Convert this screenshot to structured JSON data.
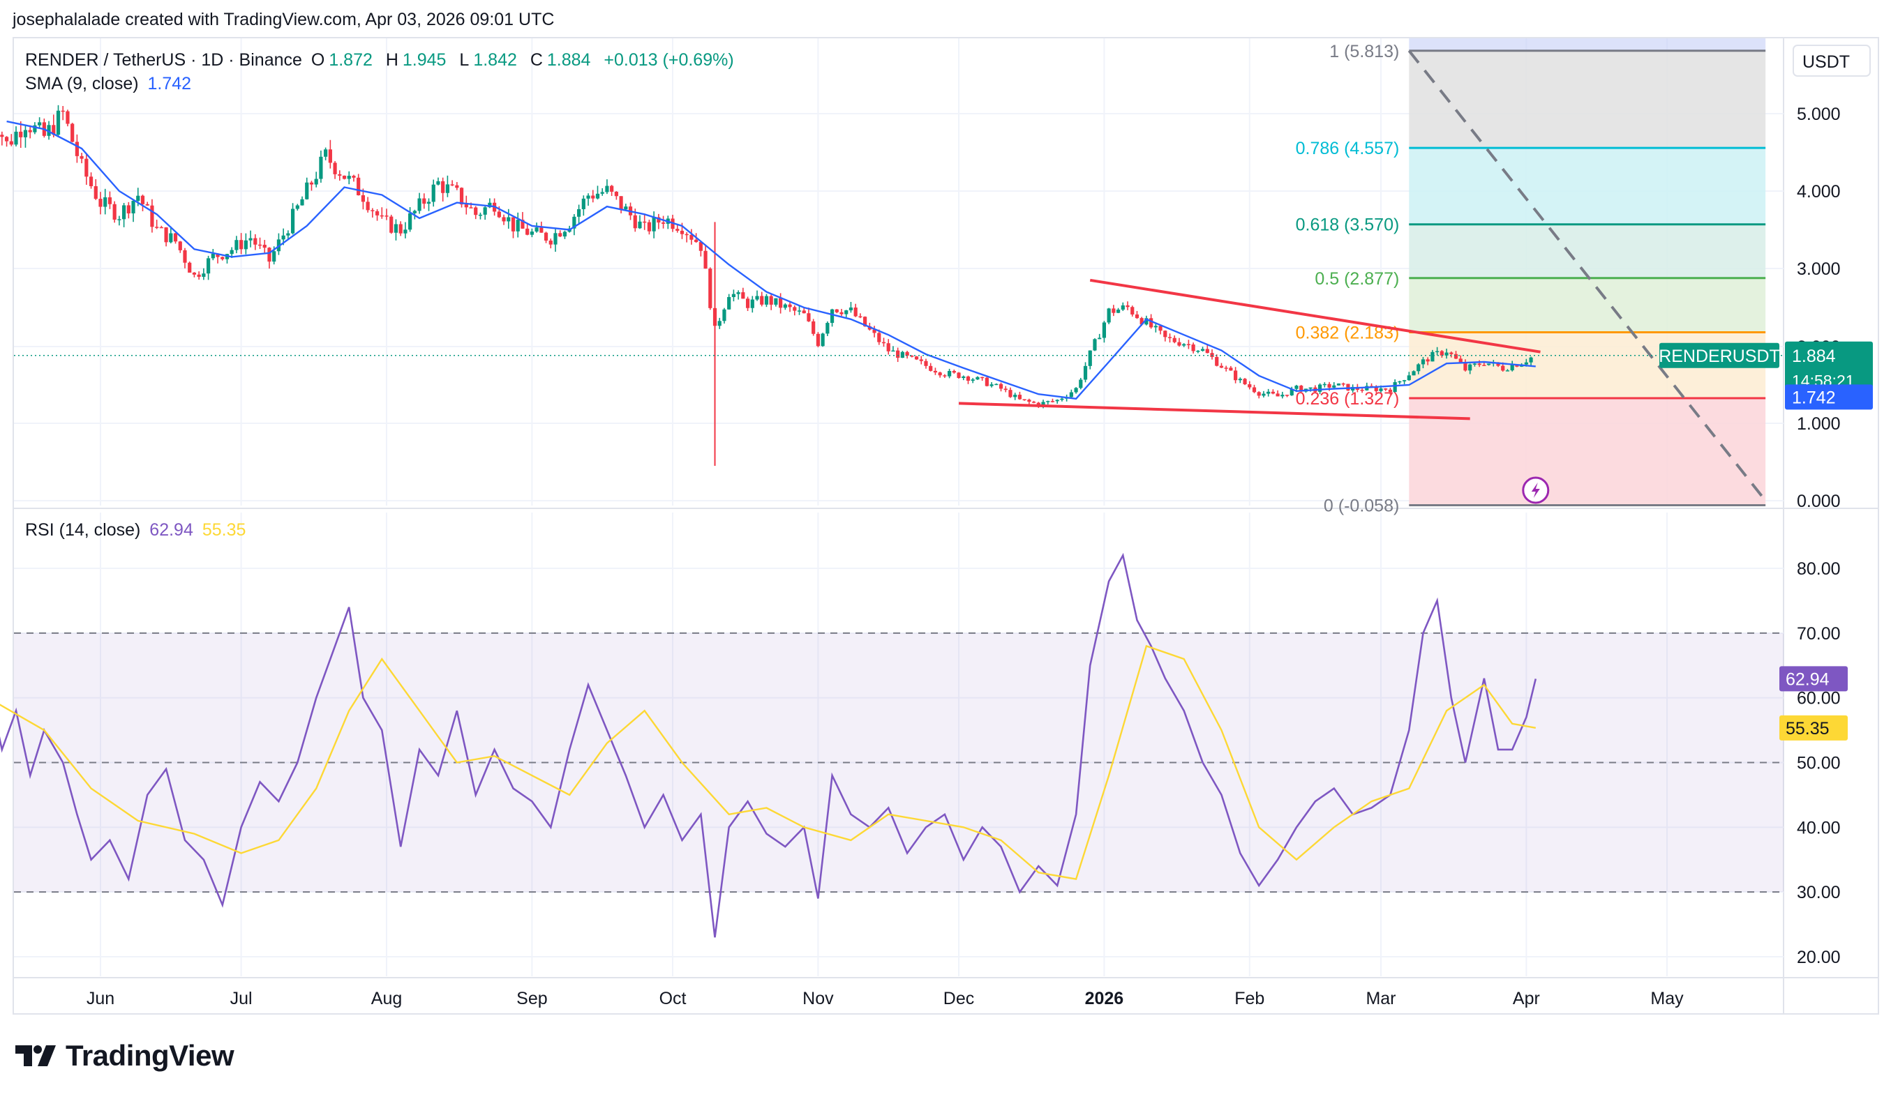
{
  "header": {
    "attribution": "josephalalade created with TradingView.com, Apr 03, 2026 09:01 UTC"
  },
  "legend": {
    "symbol": "RENDER / TetherUS · 1D · Binance",
    "o_key": "O",
    "o_val": "1.872",
    "h_key": "H",
    "h_val": "1.945",
    "l_key": "L",
    "l_val": "1.842",
    "c_key": "C",
    "c_val": "1.884",
    "change": "+0.013 (+0.69%)",
    "sma_label": "SMA (9, close)",
    "sma_val": "1.742",
    "rsi_label": "RSI (14, close)",
    "rsi_val": "62.94",
    "rsi_ma_val": "55.35"
  },
  "price_axis": {
    "currency": "USDT",
    "ticks": [
      "5.000",
      "4.000",
      "3.000",
      "2.000",
      "1.000",
      "0.000"
    ],
    "last_price": "1.884",
    "countdown": "14:58:21",
    "sma_price": "1.742",
    "symbol_tag": "RENDERUSDT"
  },
  "rsi_axis": {
    "ticks": [
      "80.00",
      "70.00",
      "60.00",
      "50.00",
      "40.00",
      "30.00",
      "20.00"
    ],
    "rsi_badge": "62.94",
    "ma_badge": "55.35"
  },
  "time_axis": [
    "Jun",
    "Jul",
    "Aug",
    "Sep",
    "Oct",
    "Nov",
    "Dec",
    "2026",
    "Feb",
    "Mar",
    "Apr",
    "May"
  ],
  "fib_levels": [
    {
      "label": "1 (5.813)",
      "level": 1,
      "price": 5.813,
      "color": "#787b86"
    },
    {
      "label": "0.786 (4.557)",
      "level": 0.786,
      "price": 4.557,
      "color": "#00bcd4"
    },
    {
      "label": "0.618 (3.570)",
      "level": 0.618,
      "price": 3.57,
      "color": "#089981"
    },
    {
      "label": "0.5 (2.877)",
      "level": 0.5,
      "price": 2.877,
      "color": "#4caf50"
    },
    {
      "label": "0.382 (2.183)",
      "level": 0.382,
      "price": 2.183,
      "color": "#ff9800"
    },
    {
      "label": "0.236 (1.327)",
      "level": 0.236,
      "price": 1.327,
      "color": "#f23645"
    },
    {
      "label": "0 (-0.058)",
      "level": 0,
      "price": -0.058,
      "color": "#787b86"
    }
  ],
  "colors": {
    "up": "#089981",
    "down": "#f23645",
    "sma": "#2962ff",
    "rsi": "#7e57c2",
    "rsi_ma": "#fdd835",
    "trendline": "#f23645",
    "grid": "#f0f3fa"
  },
  "branding": {
    "name": "TradingView"
  },
  "chart_data": {
    "type": "candlestick",
    "title": "RENDER / TetherUS · 1D · Binance",
    "x_start": "2025-05-08",
    "x_end": "2026-04-03",
    "ylim": [
      -0.1,
      6.0
    ],
    "y_scale": "log",
    "price_series": {
      "name": "RENDER / TetherUS",
      "points": [
        [
          "2025-05-08",
          5.1
        ],
        [
          "2025-05-12",
          4.6
        ],
        [
          "2025-05-16",
          4.9
        ],
        [
          "2025-05-20",
          4.7
        ],
        [
          "2025-05-24",
          5.0
        ],
        [
          "2025-05-28",
          4.3
        ],
        [
          "2025-06-01",
          3.85
        ],
        [
          "2025-06-05",
          3.7
        ],
        [
          "2025-06-09",
          3.95
        ],
        [
          "2025-06-13",
          3.5
        ],
        [
          "2025-06-17",
          3.35
        ],
        [
          "2025-06-21",
          2.9
        ],
        [
          "2025-06-25",
          3.15
        ],
        [
          "2025-06-29",
          3.25
        ],
        [
          "2025-07-03",
          3.4
        ],
        [
          "2025-07-07",
          3.1
        ],
        [
          "2025-07-11",
          3.55
        ],
        [
          "2025-07-15",
          4.0
        ],
        [
          "2025-07-19",
          4.45
        ],
        [
          "2025-07-23",
          4.2
        ],
        [
          "2025-07-27",
          3.95
        ],
        [
          "2025-07-31",
          3.6
        ],
        [
          "2025-08-04",
          3.5
        ],
        [
          "2025-08-08",
          3.8
        ],
        [
          "2025-08-12",
          4.1
        ],
        [
          "2025-08-16",
          3.95
        ],
        [
          "2025-08-20",
          3.7
        ],
        [
          "2025-08-24",
          3.85
        ],
        [
          "2025-08-28",
          3.55
        ],
        [
          "2025-09-01",
          3.45
        ],
        [
          "2025-09-05",
          3.4
        ],
        [
          "2025-09-09",
          3.6
        ],
        [
          "2025-09-13",
          3.95
        ],
        [
          "2025-09-17",
          4.0
        ],
        [
          "2025-09-21",
          3.75
        ],
        [
          "2025-09-25",
          3.5
        ],
        [
          "2025-09-29",
          3.65
        ],
        [
          "2025-10-03",
          3.55
        ],
        [
          "2025-10-07",
          3.3
        ],
        [
          "2025-10-10",
          2.2
        ],
        [
          "2025-10-13",
          2.7
        ],
        [
          "2025-10-17",
          2.55
        ],
        [
          "2025-10-21",
          2.6
        ],
        [
          "2025-10-25",
          2.5
        ],
        [
          "2025-10-29",
          2.4
        ],
        [
          "2025-11-01",
          2.05
        ],
        [
          "2025-11-04",
          2.5
        ],
        [
          "2025-11-08",
          2.45
        ],
        [
          "2025-11-12",
          2.2
        ],
        [
          "2025-11-16",
          1.95
        ],
        [
          "2025-11-20",
          1.85
        ],
        [
          "2025-11-24",
          1.75
        ],
        [
          "2025-11-28",
          1.65
        ],
        [
          "2025-12-02",
          1.62
        ],
        [
          "2025-12-06",
          1.55
        ],
        [
          "2025-12-10",
          1.45
        ],
        [
          "2025-12-14",
          1.3
        ],
        [
          "2025-12-18",
          1.25
        ],
        [
          "2025-12-22",
          1.3
        ],
        [
          "2025-12-26",
          1.45
        ],
        [
          "2025-12-29",
          1.9
        ],
        [
          "2026-01-02",
          2.45
        ],
        [
          "2026-01-06",
          2.5
        ],
        [
          "2026-01-10",
          2.3
        ],
        [
          "2026-01-14",
          2.1
        ],
        [
          "2026-01-18",
          2.05
        ],
        [
          "2026-01-22",
          1.95
        ],
        [
          "2026-01-26",
          1.75
        ],
        [
          "2026-01-30",
          1.55
        ],
        [
          "2026-02-03",
          1.4
        ],
        [
          "2026-02-07",
          1.35
        ],
        [
          "2026-02-11",
          1.45
        ],
        [
          "2026-02-15",
          1.45
        ],
        [
          "2026-02-19",
          1.5
        ],
        [
          "2026-02-23",
          1.45
        ],
        [
          "2026-02-27",
          1.45
        ],
        [
          "2026-03-03",
          1.45
        ],
        [
          "2026-03-07",
          1.65
        ],
        [
          "2026-03-11",
          1.85
        ],
        [
          "2026-03-15",
          1.95
        ],
        [
          "2026-03-19",
          1.7
        ],
        [
          "2026-03-23",
          1.8
        ],
        [
          "2026-03-27",
          1.72
        ],
        [
          "2026-03-31",
          1.8
        ],
        [
          "2026-04-03",
          1.884
        ]
      ]
    },
    "sma_series": {
      "name": "SMA (9, close)",
      "points": [
        [
          "2025-05-12",
          4.9
        ],
        [
          "2025-05-20",
          4.8
        ],
        [
          "2025-05-28",
          4.55
        ],
        [
          "2025-06-05",
          4.0
        ],
        [
          "2025-06-13",
          3.7
        ],
        [
          "2025-06-21",
          3.25
        ],
        [
          "2025-06-29",
          3.15
        ],
        [
          "2025-07-07",
          3.2
        ],
        [
          "2025-07-15",
          3.55
        ],
        [
          "2025-07-23",
          4.05
        ],
        [
          "2025-07-31",
          3.95
        ],
        [
          "2025-08-08",
          3.65
        ],
        [
          "2025-08-16",
          3.85
        ],
        [
          "2025-08-24",
          3.8
        ],
        [
          "2025-09-01",
          3.55
        ],
        [
          "2025-09-09",
          3.5
        ],
        [
          "2025-09-17",
          3.8
        ],
        [
          "2025-09-25",
          3.7
        ],
        [
          "2025-10-03",
          3.55
        ],
        [
          "2025-10-13",
          3.05
        ],
        [
          "2025-10-21",
          2.7
        ],
        [
          "2025-10-29",
          2.5
        ],
        [
          "2025-11-08",
          2.35
        ],
        [
          "2025-11-16",
          2.15
        ],
        [
          "2025-11-24",
          1.9
        ],
        [
          "2025-12-02",
          1.72
        ],
        [
          "2025-12-10",
          1.55
        ],
        [
          "2025-12-18",
          1.38
        ],
        [
          "2025-12-26",
          1.32
        ],
        [
          "2026-01-02",
          1.8
        ],
        [
          "2026-01-10",
          2.35
        ],
        [
          "2026-01-18",
          2.15
        ],
        [
          "2026-01-26",
          1.95
        ],
        [
          "2026-02-03",
          1.62
        ],
        [
          "2026-02-11",
          1.42
        ],
        [
          "2026-02-19",
          1.45
        ],
        [
          "2026-02-27",
          1.47
        ],
        [
          "2026-03-07",
          1.5
        ],
        [
          "2026-03-15",
          1.78
        ],
        [
          "2026-03-23",
          1.8
        ],
        [
          "2026-04-03",
          1.742
        ]
      ]
    },
    "trendlines": [
      {
        "from": [
          "2025-12-29",
          2.85
        ],
        "to": [
          "2026-04-04",
          1.93
        ]
      },
      {
        "from": [
          "2025-12-01",
          1.26
        ],
        "to": [
          "2026-03-20",
          1.06
        ]
      }
    ],
    "fib_anchor": {
      "x_start": "2026-03-07",
      "x_end": "2026-05-22"
    },
    "projection_line": {
      "from": [
        "2026-03-07",
        5.813
      ],
      "to": [
        "2026-05-22",
        0.0
      ]
    },
    "rsi": {
      "name": "RSI (14, close)",
      "ylim": [
        16,
        86
      ],
      "bands": [
        30,
        50,
        70
      ],
      "series": [
        [
          "2025-05-08",
          62
        ],
        [
          "2025-05-11",
          52
        ],
        [
          "2025-05-14",
          58
        ],
        [
          "2025-05-17",
          48
        ],
        [
          "2025-05-20",
          55
        ],
        [
          "2025-05-24",
          50
        ],
        [
          "2025-05-27",
          42
        ],
        [
          "2025-05-30",
          35
        ],
        [
          "2025-06-03",
          38
        ],
        [
          "2025-06-07",
          32
        ],
        [
          "2025-06-11",
          45
        ],
        [
          "2025-06-15",
          49
        ],
        [
          "2025-06-19",
          38
        ],
        [
          "2025-06-23",
          35
        ],
        [
          "2025-06-27",
          28
        ],
        [
          "2025-07-01",
          40
        ],
        [
          "2025-07-05",
          47
        ],
        [
          "2025-07-09",
          44
        ],
        [
          "2025-07-13",
          50
        ],
        [
          "2025-07-17",
          60
        ],
        [
          "2025-07-21",
          68
        ],
        [
          "2025-07-24",
          74
        ],
        [
          "2025-07-27",
          60
        ],
        [
          "2025-07-31",
          55
        ],
        [
          "2025-08-04",
          37
        ],
        [
          "2025-08-08",
          52
        ],
        [
          "2025-08-12",
          48
        ],
        [
          "2025-08-16",
          58
        ],
        [
          "2025-08-20",
          45
        ],
        [
          "2025-08-24",
          52
        ],
        [
          "2025-08-28",
          46
        ],
        [
          "2025-09-01",
          44
        ],
        [
          "2025-09-05",
          40
        ],
        [
          "2025-09-09",
          52
        ],
        [
          "2025-09-13",
          62
        ],
        [
          "2025-09-17",
          55
        ],
        [
          "2025-09-21",
          48
        ],
        [
          "2025-09-25",
          40
        ],
        [
          "2025-09-29",
          45
        ],
        [
          "2025-10-03",
          38
        ],
        [
          "2025-10-07",
          42
        ],
        [
          "2025-10-10",
          23
        ],
        [
          "2025-10-13",
          40
        ],
        [
          "2025-10-17",
          44
        ],
        [
          "2025-10-21",
          39
        ],
        [
          "2025-10-25",
          37
        ],
        [
          "2025-10-29",
          40
        ],
        [
          "2025-11-01",
          29
        ],
        [
          "2025-11-04",
          48
        ],
        [
          "2025-11-08",
          42
        ],
        [
          "2025-11-12",
          40
        ],
        [
          "2025-11-16",
          43
        ],
        [
          "2025-11-20",
          36
        ],
        [
          "2025-11-24",
          40
        ],
        [
          "2025-11-28",
          42
        ],
        [
          "2025-12-02",
          35
        ],
        [
          "2025-12-06",
          40
        ],
        [
          "2025-12-10",
          37
        ],
        [
          "2025-12-14",
          30
        ],
        [
          "2025-12-18",
          34
        ],
        [
          "2025-12-22",
          31
        ],
        [
          "2025-12-26",
          42
        ],
        [
          "2025-12-29",
          65
        ],
        [
          "2026-01-02",
          78
        ],
        [
          "2026-01-05",
          82
        ],
        [
          "2026-01-08",
          72
        ],
        [
          "2026-01-11",
          68
        ],
        [
          "2026-01-14",
          63
        ],
        [
          "2026-01-18",
          58
        ],
        [
          "2026-01-22",
          50
        ],
        [
          "2026-01-26",
          45
        ],
        [
          "2026-01-30",
          36
        ],
        [
          "2026-02-03",
          31
        ],
        [
          "2026-02-07",
          35
        ],
        [
          "2026-02-11",
          40
        ],
        [
          "2026-02-15",
          44
        ],
        [
          "2026-02-19",
          46
        ],
        [
          "2026-02-23",
          42
        ],
        [
          "2026-02-27",
          43
        ],
        [
          "2026-03-03",
          45
        ],
        [
          "2026-03-07",
          55
        ],
        [
          "2026-03-10",
          70
        ],
        [
          "2026-03-13",
          75
        ],
        [
          "2026-03-16",
          60
        ],
        [
          "2026-03-19",
          50
        ],
        [
          "2026-03-23",
          63
        ],
        [
          "2026-03-26",
          52
        ],
        [
          "2026-03-29",
          52
        ],
        [
          "2026-04-01",
          57
        ],
        [
          "2026-04-03",
          62.94
        ]
      ],
      "ma_series": [
        [
          "2025-05-08",
          60
        ],
        [
          "2025-05-20",
          55
        ],
        [
          "2025-05-30",
          46
        ],
        [
          "2025-06-09",
          41
        ],
        [
          "2025-06-21",
          39
        ],
        [
          "2025-07-01",
          36
        ],
        [
          "2025-07-09",
          38
        ],
        [
          "2025-07-17",
          46
        ],
        [
          "2025-07-24",
          58
        ],
        [
          "2025-07-31",
          66
        ],
        [
          "2025-08-08",
          58
        ],
        [
          "2025-08-16",
          50
        ],
        [
          "2025-08-24",
          51
        ],
        [
          "2025-09-01",
          48
        ],
        [
          "2025-09-09",
          45
        ],
        [
          "2025-09-17",
          53
        ],
        [
          "2025-09-25",
          58
        ],
        [
          "2025-10-03",
          50
        ],
        [
          "2025-10-13",
          42
        ],
        [
          "2025-10-21",
          43
        ],
        [
          "2025-10-29",
          40
        ],
        [
          "2025-11-08",
          38
        ],
        [
          "2025-11-16",
          42
        ],
        [
          "2025-11-24",
          41
        ],
        [
          "2025-12-02",
          40
        ],
        [
          "2025-12-10",
          38
        ],
        [
          "2025-12-18",
          33
        ],
        [
          "2025-12-26",
          32
        ],
        [
          "2026-01-02",
          48
        ],
        [
          "2026-01-10",
          68
        ],
        [
          "2026-01-18",
          66
        ],
        [
          "2026-01-26",
          55
        ],
        [
          "2026-02-03",
          40
        ],
        [
          "2026-02-11",
          35
        ],
        [
          "2026-02-19",
          40
        ],
        [
          "2026-02-27",
          44
        ],
        [
          "2026-03-07",
          46
        ],
        [
          "2026-03-15",
          58
        ],
        [
          "2026-03-23",
          62
        ],
        [
          "2026-03-29",
          56
        ],
        [
          "2026-04-03",
          55.35
        ]
      ]
    }
  }
}
